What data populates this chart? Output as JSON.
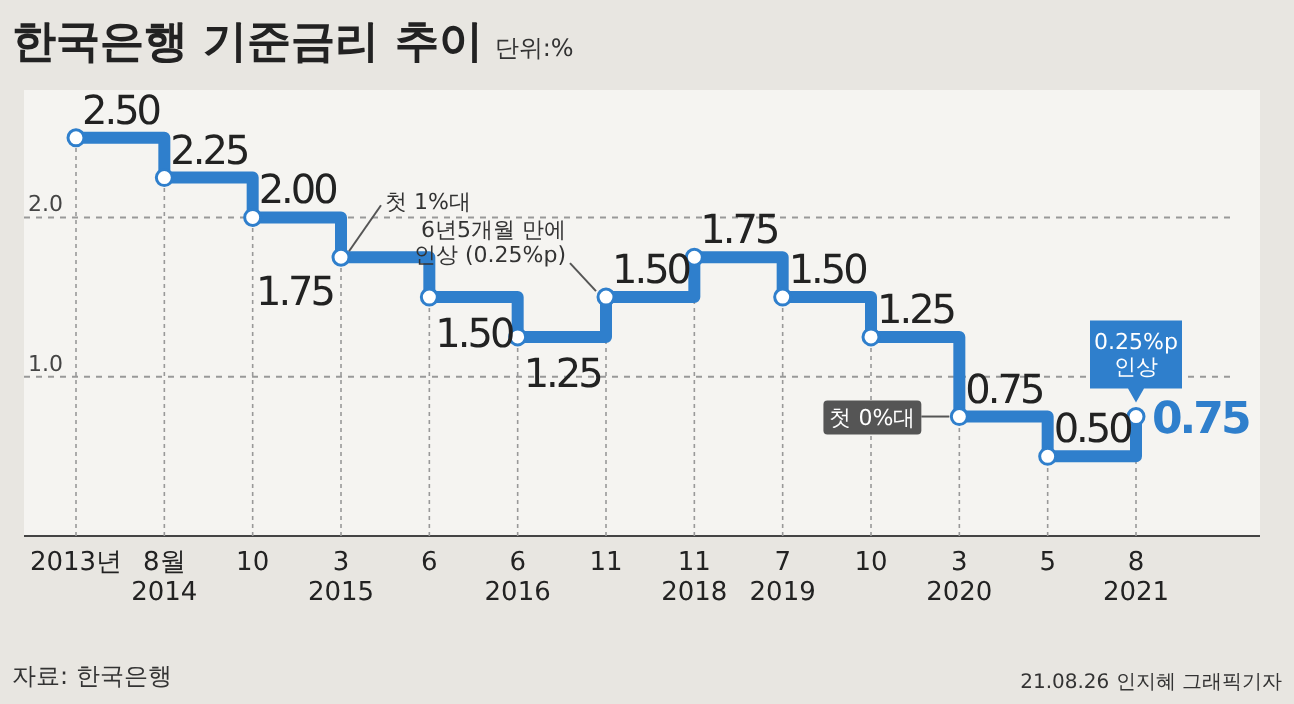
{
  "chart_data": {
    "type": "step",
    "title": "한국은행 기준금리 추이",
    "subtitle": "단위:%",
    "categories": [
      "2013년",
      "8월\n2014",
      "10",
      "3\n2015",
      "6",
      "6\n2016",
      "11",
      "11\n2018",
      "7\n2019",
      "10",
      "3\n2020",
      "5",
      "8\n2021"
    ],
    "series": [
      {
        "color": "#2f7fcc",
        "values": [
          2.5,
          2.25,
          2.0,
          1.75,
          1.5,
          1.25,
          1.5,
          1.75,
          1.5,
          1.25,
          0.75,
          0.5,
          0.75
        ]
      }
    ],
    "value_labels": [
      "2.50",
      "2.25",
      "2.00",
      "1.75",
      "1.50",
      "1.25",
      "1.50",
      "1.75",
      "1.50",
      "1.25",
      "0.75",
      "0.50",
      "0.75"
    ],
    "marker": "circle",
    "line_style": "solid",
    "grid": true,
    "ylim": [
      0,
      2.8
    ],
    "yticks": [
      {
        "value": 1,
        "label": "1.0"
      },
      {
        "value": 2,
        "label": "2.0"
      }
    ],
    "annotations": [
      {
        "text": "첫 1%대",
        "x": "3\n2015",
        "y": 1.75
      },
      {
        "text": "6년5개월 만에\n인상 (0.25%p)",
        "x": "11",
        "y": 1.5
      },
      {
        "text": "첫 0%대",
        "x": "3\n2020",
        "y": 0.75
      },
      {
        "text": "0.25%p\n인상",
        "x": "8\n2021",
        "y": 0.75
      },
      "자료: 한국은행",
      "21.08.26 인지혜 그래픽기자"
    ]
  }
}
